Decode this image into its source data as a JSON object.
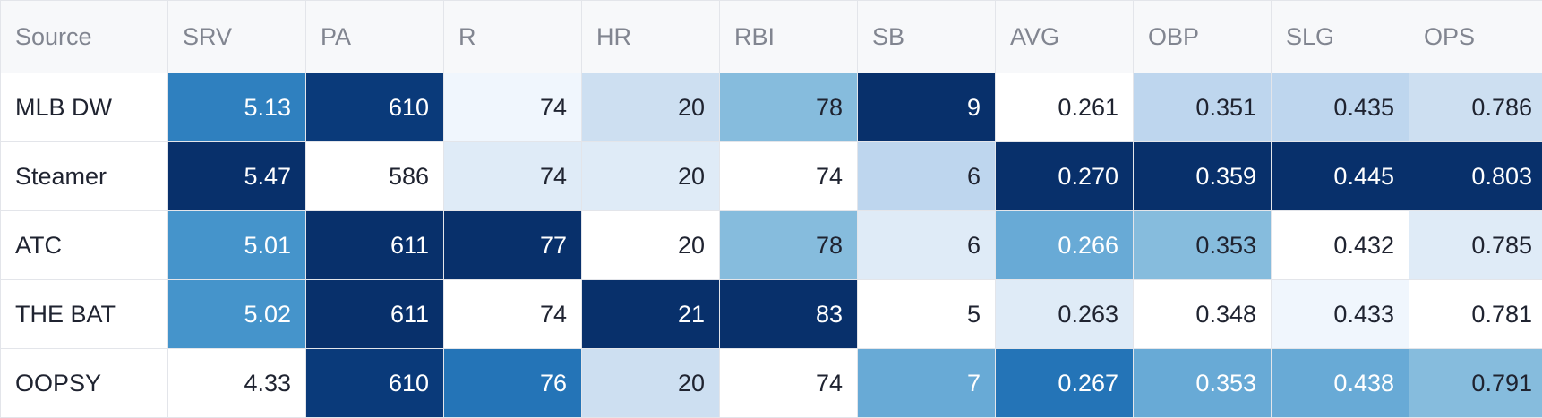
{
  "table": {
    "columns": [
      "Source",
      "SRV",
      "PA",
      "R",
      "HR",
      "RBI",
      "SB",
      "AVG",
      "OBP",
      "SLG",
      "OPS"
    ],
    "rows": [
      {
        "source": "MLB DW",
        "cells": [
          {
            "value": "5.13",
            "shade": 8
          },
          {
            "value": "610",
            "shade": 10
          },
          {
            "value": "74",
            "shade": 1
          },
          {
            "value": "20",
            "shade": 3
          },
          {
            "value": "78",
            "shade": 5
          },
          {
            "value": "9",
            "shade": 11
          },
          {
            "value": "0.261",
            "shade": 0
          },
          {
            "value": "0.351",
            "shade": 4
          },
          {
            "value": "0.435",
            "shade": 4
          },
          {
            "value": "0.786",
            "shade": 3
          }
        ]
      },
      {
        "source": "Steamer",
        "cells": [
          {
            "value": "5.47",
            "shade": 11
          },
          {
            "value": "586",
            "shade": 0
          },
          {
            "value": "74",
            "shade": 2
          },
          {
            "value": "20",
            "shade": 2
          },
          {
            "value": "74",
            "shade": 0
          },
          {
            "value": "6",
            "shade": 4
          },
          {
            "value": "0.270",
            "shade": 11
          },
          {
            "value": "0.359",
            "shade": 11
          },
          {
            "value": "0.445",
            "shade": 11
          },
          {
            "value": "0.803",
            "shade": 11
          }
        ]
      },
      {
        "source": "ATC",
        "cells": [
          {
            "value": "5.01",
            "shade": 7
          },
          {
            "value": "611",
            "shade": 11
          },
          {
            "value": "77",
            "shade": 11
          },
          {
            "value": "20",
            "shade": 0
          },
          {
            "value": "78",
            "shade": 5
          },
          {
            "value": "6",
            "shade": 2
          },
          {
            "value": "0.266",
            "shade": 6
          },
          {
            "value": "0.353",
            "shade": 5
          },
          {
            "value": "0.432",
            "shade": 0
          },
          {
            "value": "0.785",
            "shade": 2
          }
        ]
      },
      {
        "source": "THE BAT",
        "cells": [
          {
            "value": "5.02",
            "shade": 7
          },
          {
            "value": "611",
            "shade": 11
          },
          {
            "value": "74",
            "shade": 0
          },
          {
            "value": "21",
            "shade": 11
          },
          {
            "value": "83",
            "shade": 11
          },
          {
            "value": "5",
            "shade": 0
          },
          {
            "value": "0.263",
            "shade": 2
          },
          {
            "value": "0.348",
            "shade": 0
          },
          {
            "value": "0.433",
            "shade": 1
          },
          {
            "value": "0.781",
            "shade": 0
          }
        ]
      },
      {
        "source": "OOPSY",
        "cells": [
          {
            "value": "4.33",
            "shade": 0
          },
          {
            "value": "610",
            "shade": 10
          },
          {
            "value": "76",
            "shade": 9
          },
          {
            "value": "20",
            "shade": 3
          },
          {
            "value": "74",
            "shade": 0
          },
          {
            "value": "7",
            "shade": 6
          },
          {
            "value": "0.267",
            "shade": 9
          },
          {
            "value": "0.353",
            "shade": 6
          },
          {
            "value": "0.438",
            "shade": 6
          },
          {
            "value": "0.791",
            "shade": 5
          }
        ]
      }
    ]
  }
}
